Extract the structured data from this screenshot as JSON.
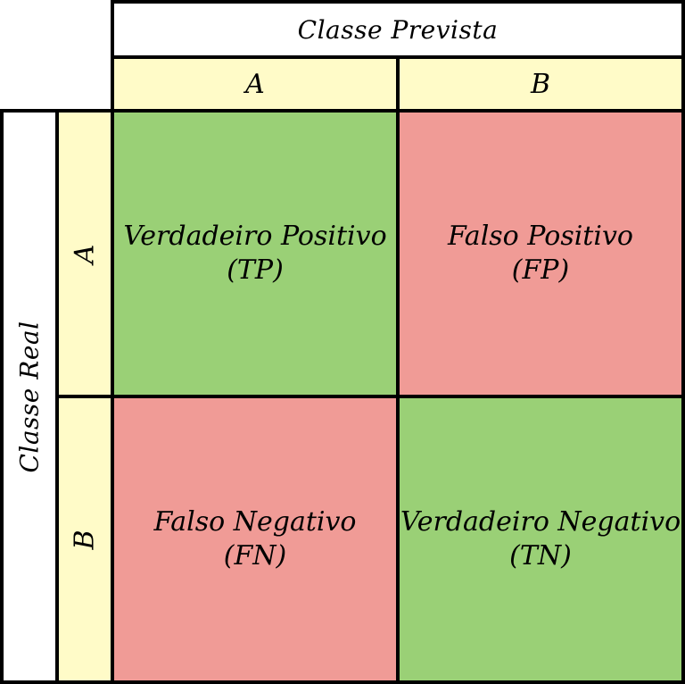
{
  "column_header": {
    "title": "Classe Prevista",
    "classes": [
      "A",
      "B"
    ]
  },
  "row_header": {
    "title": "Classe Real",
    "classes": [
      "A",
      "B"
    ]
  },
  "cells": {
    "tp": {
      "name": "Verdadeiro Positivo",
      "abbr": "(TP)"
    },
    "fp": {
      "name": "Falso Positivo",
      "abbr": "(FP)"
    },
    "fn": {
      "name": "Falso Negativo",
      "abbr": "(FN)"
    },
    "tn": {
      "name": "Verdadeiro Negativo",
      "abbr": "(TN)"
    }
  },
  "colors": {
    "header_white": "#ffffff",
    "header_yellow": "#fffbc8",
    "correct": "#9ad076",
    "incorrect": "#f09b96",
    "border": "#000000"
  }
}
